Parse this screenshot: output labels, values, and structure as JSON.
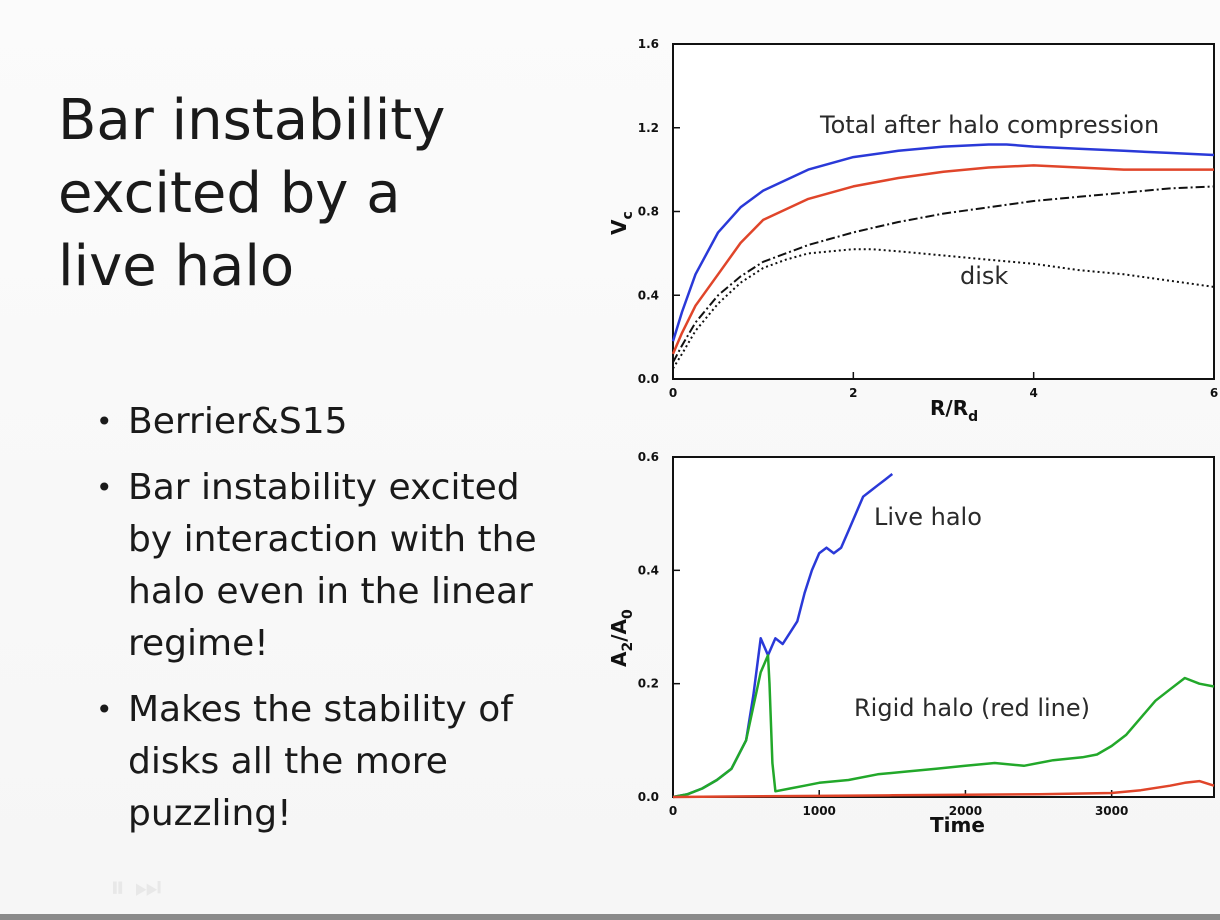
{
  "slide": {
    "title": "Bar instability\nexcited by a\nlive halo",
    "bullets": [
      "Berrier&S15",
      "Bar instability excited by interaction with the halo even in the linear regime!",
      "Makes the stability of disks all the more puzzling!"
    ]
  },
  "chart_data": [
    {
      "type": "line",
      "xlabel": "R/R_d",
      "ylabel": "V_c",
      "xlim": [
        0,
        6
      ],
      "ylim": [
        0,
        1.6
      ],
      "xticks": [
        "0",
        "2",
        "4",
        "6"
      ],
      "yticks": [
        "0.0",
        "0.4",
        "0.8",
        "1.2",
        "1.6"
      ],
      "annotations": [
        "Total after halo compression",
        "disk"
      ],
      "series": [
        {
          "color": "#2a39d8",
          "style": "solid",
          "x": [
            0,
            0.1,
            0.25,
            0.5,
            0.75,
            1.0,
            1.5,
            2.0,
            2.5,
            3.0,
            3.5,
            3.7,
            4.0,
            4.5,
            5.0,
            5.5,
            6.0
          ],
          "y": [
            0.18,
            0.32,
            0.5,
            0.7,
            0.82,
            0.9,
            1.0,
            1.06,
            1.09,
            1.11,
            1.12,
            1.12,
            1.11,
            1.1,
            1.09,
            1.08,
            1.07
          ]
        },
        {
          "color": "#e0452a",
          "style": "solid",
          "x": [
            0,
            0.1,
            0.25,
            0.5,
            0.75,
            1.0,
            1.5,
            2.0,
            2.5,
            3.0,
            3.5,
            4.0,
            4.5,
            5.0,
            5.5,
            6.0
          ],
          "y": [
            0.12,
            0.22,
            0.35,
            0.5,
            0.65,
            0.76,
            0.86,
            0.92,
            0.96,
            0.99,
            1.01,
            1.02,
            1.01,
            1.0,
            1.0,
            1.0
          ]
        },
        {
          "color": "#111111",
          "style": "dashdot",
          "x": [
            0,
            0.1,
            0.25,
            0.5,
            0.75,
            1.0,
            1.5,
            2.0,
            2.5,
            3.0,
            3.5,
            4.0,
            4.5,
            5.0,
            5.5,
            6.0
          ],
          "y": [
            0.08,
            0.16,
            0.27,
            0.4,
            0.49,
            0.56,
            0.64,
            0.7,
            0.75,
            0.79,
            0.82,
            0.85,
            0.87,
            0.89,
            0.91,
            0.92
          ]
        },
        {
          "color": "#111111",
          "style": "dotted",
          "x": [
            0,
            0.1,
            0.25,
            0.5,
            0.75,
            1.0,
            1.25,
            1.5,
            2.0,
            2.2,
            2.5,
            3.0,
            3.5,
            4.0,
            4.5,
            5.0,
            5.5,
            6.0
          ],
          "y": [
            0.05,
            0.12,
            0.23,
            0.36,
            0.46,
            0.53,
            0.57,
            0.6,
            0.62,
            0.62,
            0.61,
            0.59,
            0.57,
            0.55,
            0.52,
            0.5,
            0.47,
            0.44
          ]
        }
      ]
    },
    {
      "type": "line",
      "xlabel": "Time",
      "ylabel": "A_2/A_0",
      "xlim": [
        0,
        3700
      ],
      "ylim": [
        0,
        0.6
      ],
      "xticks": [
        "0",
        "1000",
        "2000",
        "3000"
      ],
      "yticks": [
        "0.0",
        "0.2",
        "0.4",
        "0.6"
      ],
      "annotations": [
        "Live halo",
        "Rigid halo (red line)"
      ],
      "series": [
        {
          "color": "#2a39d8",
          "x": [
            0,
            100,
            200,
            300,
            400,
            500,
            550,
            600,
            650,
            700,
            750,
            800,
            850,
            900,
            950,
            1000,
            1050,
            1100,
            1150,
            1200,
            1250,
            1300,
            1350,
            1400,
            1450,
            1500
          ],
          "y": [
            0.0,
            0.005,
            0.015,
            0.03,
            0.05,
            0.1,
            0.18,
            0.28,
            0.25,
            0.28,
            0.27,
            0.29,
            0.31,
            0.36,
            0.4,
            0.43,
            0.44,
            0.43,
            0.44,
            0.47,
            0.5,
            0.53,
            0.54,
            0.55,
            0.56,
            0.57
          ]
        },
        {
          "color": "#22a82a",
          "x": [
            0,
            100,
            200,
            300,
            400,
            500,
            550,
            600,
            650,
            660,
            680,
            700,
            800,
            900,
            1000,
            1200,
            1400,
            1600,
            1800,
            2000,
            2200,
            2400,
            2600,
            2800,
            2900,
            3000,
            3100,
            3200,
            3300,
            3400,
            3500,
            3600,
            3700
          ],
          "y": [
            0.0,
            0.005,
            0.015,
            0.03,
            0.05,
            0.1,
            0.16,
            0.22,
            0.25,
            0.2,
            0.06,
            0.01,
            0.015,
            0.02,
            0.025,
            0.03,
            0.04,
            0.045,
            0.05,
            0.055,
            0.06,
            0.055,
            0.065,
            0.07,
            0.075,
            0.09,
            0.11,
            0.14,
            0.17,
            0.19,
            0.21,
            0.2,
            0.195
          ]
        },
        {
          "color": "#e0452a",
          "x": [
            0,
            500,
            1000,
            1500,
            2000,
            2500,
            3000,
            3200,
            3400,
            3500,
            3600,
            3700
          ],
          "y": [
            0.0,
            0.001,
            0.002,
            0.003,
            0.004,
            0.005,
            0.007,
            0.012,
            0.02,
            0.025,
            0.028,
            0.02
          ]
        }
      ]
    }
  ]
}
